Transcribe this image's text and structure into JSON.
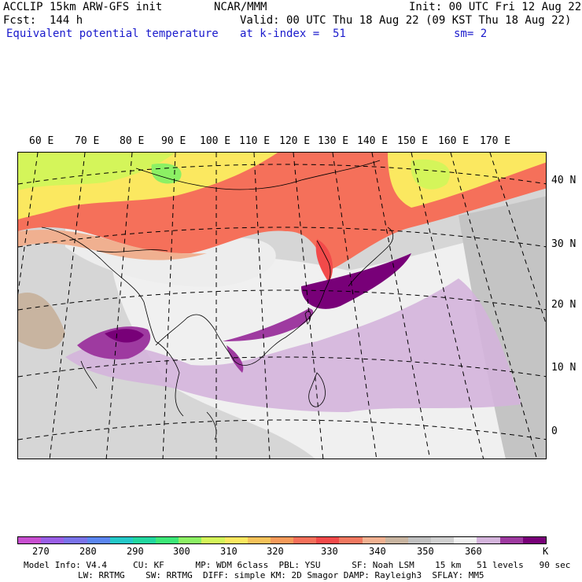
{
  "header": {
    "model": "ACCLIP 15km ARW-GFS init",
    "center": "NCAR/MMM",
    "init": "Init: 00 UTC Fri 12 Aug 22",
    "fcst": "Fcst:  144 h",
    "valid": "Valid: 00 UTC Thu 18 Aug 22 (09 KST Thu 18 Aug 22)",
    "field": "Equivalent potential temperature",
    "level": "at k-index =  51",
    "smooth": "sm= 2"
  },
  "map": {
    "lon_labels": [
      "60 E",
      "70 E",
      "80 E",
      "90 E",
      "100 E",
      "110 E",
      "120 E",
      "130 E",
      "140 E",
      "150 E",
      "160 E",
      "170 E"
    ],
    "lat_labels": [
      "40 N",
      "30 N",
      "20 N",
      "10 N",
      "0"
    ]
  },
  "colorbar": {
    "colors": [
      "#c84fd0",
      "#9a5fe6",
      "#7a73ea",
      "#5b86f0",
      "#24c8c8",
      "#22d7a0",
      "#3ce878",
      "#8cf064",
      "#d4f55a",
      "#fbe860",
      "#f5c25a",
      "#f59a5a",
      "#f5705a",
      "#f24a4a",
      "#f07860",
      "#f0b090",
      "#c8b4a0",
      "#c0c0c0",
      "#d0d0d0",
      "#f0f0f0",
      "#d4b4dc",
      "#9e3aa0",
      "#780078"
    ],
    "labels": [
      "270",
      "280",
      "290",
      "300",
      "310",
      "320",
      "330",
      "340",
      "350",
      "360",
      "K"
    ]
  },
  "footer": {
    "line1": "Model Info: V4.4     CU: KF      MP: WDM 6class  PBL: YSU      SF: Noah LSM    15 km   51 levels   90 sec",
    "line2": "LW: RRTMG    SW: RRTMG  DIFF: simple KM: 2D Smagor DAMP: Rayleigh3  SFLAY: MM5"
  }
}
